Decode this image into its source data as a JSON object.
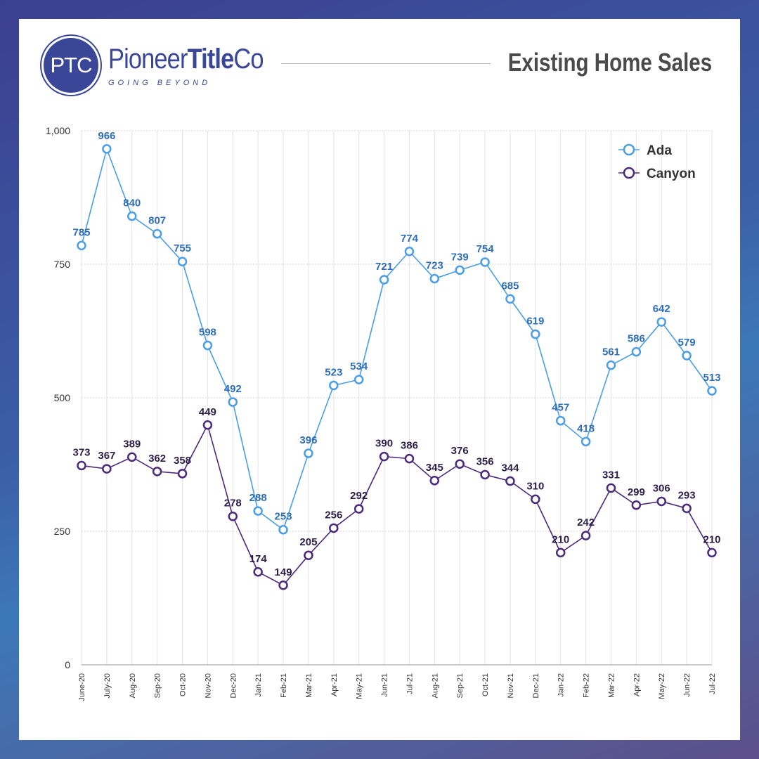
{
  "header": {
    "logo_mark": "PTC",
    "brand_regular": "Pioneer",
    "brand_bold": "Title",
    "brand_end": "Co",
    "tagline": "GOING BEYOND",
    "title": "Existing Home Sales"
  },
  "colors": {
    "ada": "#4a9de6",
    "canyon": "#4b2a7a",
    "ada_label": "#2e6db8",
    "canyon_label": "#2b1f4a",
    "brand": "#3a4697"
  },
  "chart_data": {
    "type": "line",
    "title": "Existing Home Sales",
    "xlabel": "",
    "ylabel": "",
    "ylim": [
      0,
      1000
    ],
    "yticks": [
      0,
      250,
      500,
      750,
      1000
    ],
    "ytick_labels": [
      "0",
      "250",
      "500",
      "750",
      "1,000"
    ],
    "grid": true,
    "legend_position": "top-right",
    "categories": [
      "June-20",
      "July-20",
      "Aug-20",
      "Sep-20",
      "Oct-20",
      "Nov-20",
      "Dec-20",
      "Jan-21",
      "Feb-21",
      "Mar-21",
      "Apr-21",
      "May-21",
      "Jun-21",
      "Jul-21",
      "Aug-21",
      "Sep-21",
      "Oct-21",
      "Nov-21",
      "Dec-21",
      "Jan-22",
      "Feb-22",
      "Mar-22",
      "Apr-22",
      "May-22",
      "Jun-22",
      "Jul-22"
    ],
    "series": [
      {
        "name": "Ada",
        "values": [
          785,
          966,
          840,
          807,
          755,
          598,
          492,
          288,
          253,
          396,
          523,
          534,
          721,
          774,
          723,
          739,
          754,
          685,
          619,
          457,
          418,
          561,
          586,
          642,
          579,
          513
        ]
      },
      {
        "name": "Canyon",
        "values": [
          373,
          367,
          389,
          362,
          358,
          449,
          278,
          174,
          149,
          205,
          256,
          292,
          390,
          386,
          345,
          376,
          356,
          344,
          310,
          210,
          242,
          331,
          299,
          306,
          293,
          210
        ]
      }
    ]
  }
}
